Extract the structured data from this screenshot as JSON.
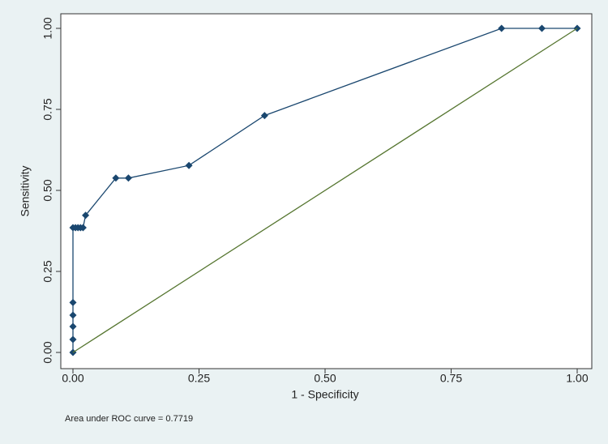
{
  "chart_data": {
    "type": "line",
    "x_label": "1 - Specificity",
    "y_label": "Sensitivity",
    "note": "Area under ROC curve = 0.7719",
    "series": [
      {
        "color": "#1a476f",
        "markers": true,
        "x": [
          0,
          0,
          0,
          0,
          0,
          0,
          0.005,
          0.01,
          0.015,
          0.02,
          0.025,
          0.085,
          0.11,
          0.23,
          0.38,
          0.85,
          0.93,
          1
        ],
        "values": [
          0,
          0.04,
          0.08,
          0.115,
          0.154,
          0.385,
          0.385,
          0.385,
          0.385,
          0.385,
          0.423,
          0.538,
          0.538,
          0.577,
          0.731,
          1,
          1,
          1
        ]
      },
      {
        "color": "#55752f",
        "markers": false,
        "x": [
          0,
          1
        ],
        "values": [
          0,
          1
        ]
      }
    ],
    "xlim": [
      0,
      1
    ],
    "ylim": [
      0,
      1
    ],
    "xticks": [
      {
        "value": 0,
        "label": "0.00"
      },
      {
        "value": 0.25,
        "label": "0.25"
      },
      {
        "value": 0.5,
        "label": "0.50"
      },
      {
        "value": 0.75,
        "label": "0.75"
      },
      {
        "value": 1,
        "label": "1.00"
      }
    ],
    "yticks": [
      {
        "value": 0,
        "label": "0.00"
      },
      {
        "value": 0.25,
        "label": "0.25"
      },
      {
        "value": 0.5,
        "label": "0.50"
      },
      {
        "value": 0.75,
        "label": "0.75"
      },
      {
        "value": 1,
        "label": "1.00"
      }
    ]
  }
}
